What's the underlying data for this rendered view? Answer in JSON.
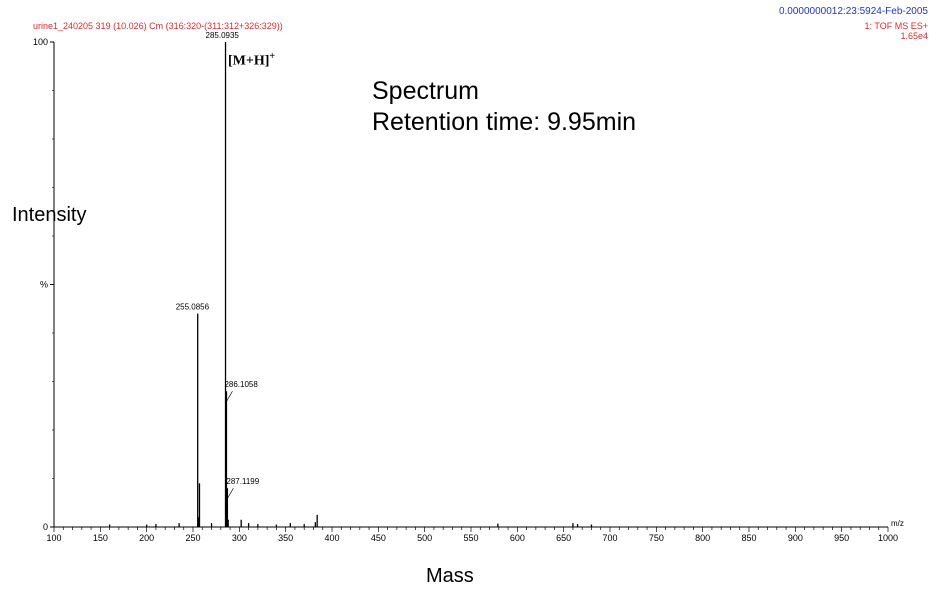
{
  "header": {
    "left": "urine1_240205 319 (10.026) Cm (316:320-(311:312+326:329))",
    "right_line1": "0.0000000012:23:5924-Feb-2005",
    "right_line2": "1: TOF MS ES+",
    "right_line3": "1.65e4"
  },
  "annotation": {
    "line1": "Spectrum",
    "line2": "Retention time: 9.95min",
    "ion_label": "[M+H]",
    "ion_sup": "+"
  },
  "chart_data": {
    "type": "bar",
    "xlabel": "Mass",
    "ylabel": "Intensity",
    "x_unit_label": "m/z",
    "xlim": [
      100,
      1000
    ],
    "ylim": [
      0,
      100
    ],
    "y_tick_labels": [
      {
        "value": 100,
        "label": "100"
      },
      {
        "value": 50,
        "label": "%"
      },
      {
        "value": 0,
        "label": "0"
      }
    ],
    "x_ticks": [
      100,
      150,
      200,
      250,
      300,
      350,
      400,
      450,
      500,
      550,
      600,
      650,
      700,
      750,
      800,
      850,
      900,
      950,
      1000
    ],
    "peaks": [
      {
        "mz": 285.0935,
        "intensity": 100
      },
      {
        "mz": 255.0856,
        "intensity": 44
      },
      {
        "mz": 257.0,
        "intensity": 9
      },
      {
        "mz": 286.1058,
        "intensity": 28
      },
      {
        "mz": 287.1199,
        "intensity": 8
      },
      {
        "mz": 256.0,
        "intensity": 2
      },
      {
        "mz": 288.0,
        "intensity": 1.5
      },
      {
        "mz": 384.0,
        "intensity": 2.5
      },
      {
        "mz": 382.0,
        "intensity": 1
      },
      {
        "mz": 302.0,
        "intensity": 1.5
      },
      {
        "mz": 310.0,
        "intensity": 0.8
      },
      {
        "mz": 235.0,
        "intensity": 0.8
      },
      {
        "mz": 210.0,
        "intensity": 0.6
      },
      {
        "mz": 200.0,
        "intensity": 0.5
      },
      {
        "mz": 160.0,
        "intensity": 0.5
      },
      {
        "mz": 270.0,
        "intensity": 0.8
      },
      {
        "mz": 320.0,
        "intensity": 0.6
      },
      {
        "mz": 340.0,
        "intensity": 0.5
      },
      {
        "mz": 355.0,
        "intensity": 0.8
      },
      {
        "mz": 370.0,
        "intensity": 0.6
      },
      {
        "mz": 579.0,
        "intensity": 0.7
      },
      {
        "mz": 660.0,
        "intensity": 0.8
      },
      {
        "mz": 665.0,
        "intensity": 0.6
      },
      {
        "mz": 680.0,
        "intensity": 0.5
      }
    ],
    "peak_labels": [
      {
        "mz": 285.0935,
        "text": "285.0935"
      },
      {
        "mz": 255.0856,
        "text": "255.0856"
      },
      {
        "mz": 286.1058,
        "text": "286.1058"
      },
      {
        "mz": 287.1199,
        "text": "287.1199"
      }
    ]
  }
}
